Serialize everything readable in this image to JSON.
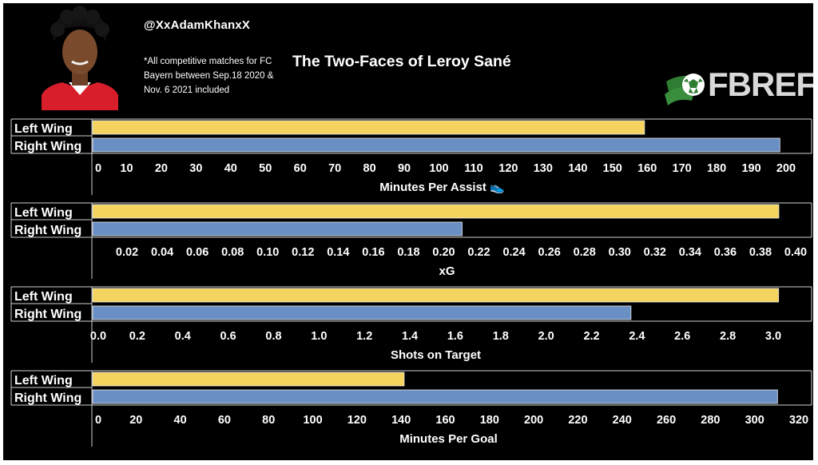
{
  "header": {
    "handle": "@XxAdamKhanxX",
    "note": "*All competitive matches for FC Bayern between Sep.18 2020 & Nov. 6 2021 included",
    "title": "The Two-Faces of Leroy Sané"
  },
  "logo": {
    "text": "FBREF"
  },
  "colors": {
    "left_wing": "#f4d35e",
    "right_wing": "#6a8fc5",
    "background": "#000000",
    "text": "#ffffff"
  },
  "chart_data": [
    {
      "type": "bar",
      "orientation": "horizontal",
      "categories": [
        "Left Wing",
        "Right Wing"
      ],
      "values": [
        159,
        198
      ],
      "xlabel": "Minutes Per Assist 👟",
      "xlim": [
        0,
        200
      ],
      "ticks": [
        "0",
        "10",
        "20",
        "30",
        "40",
        "50",
        "60",
        "70",
        "80",
        "90",
        "100",
        "110",
        "120",
        "130",
        "140",
        "150",
        "160",
        "170",
        "180",
        "190",
        "200"
      ]
    },
    {
      "type": "bar",
      "orientation": "horizontal",
      "categories": [
        "Left Wing",
        "Right Wing"
      ],
      "values": [
        0.39,
        0.21
      ],
      "xlabel": "xG",
      "xlim": [
        0,
        0.4
      ],
      "ticks": [
        "0.02",
        "0.04",
        "0.06",
        "0.08",
        "0.10",
        "0.12",
        "0.14",
        "0.16",
        "0.18",
        "0.20",
        "0.22",
        "0.24",
        "0.26",
        "0.28",
        "0.30",
        "0.32",
        "0.34",
        "0.36",
        "0.38",
        "0.40"
      ]
    },
    {
      "type": "bar",
      "orientation": "horizontal",
      "categories": [
        "Left Wing",
        "Right Wing"
      ],
      "values": [
        3.02,
        2.37
      ],
      "xlabel": "Shots on Target",
      "xlim": [
        0,
        3.0
      ],
      "ticks": [
        "0.0",
        "0.2",
        "0.4",
        "0.6",
        "0.8",
        "1.0",
        "1.2",
        "1.4",
        "1.6",
        "1.8",
        "2.0",
        "2.2",
        "2.4",
        "2.6",
        "2.8",
        "3.0"
      ]
    },
    {
      "type": "bar",
      "orientation": "horizontal",
      "categories": [
        "Left Wing",
        "Right Wing"
      ],
      "values": [
        141,
        310
      ],
      "xlabel": "Minutes Per Goal",
      "xlim": [
        0,
        320
      ],
      "ticks": [
        "0",
        "20",
        "40",
        "60",
        "80",
        "100",
        "120",
        "140",
        "160",
        "180",
        "200",
        "220",
        "240",
        "260",
        "280",
        "300",
        "320"
      ]
    }
  ]
}
